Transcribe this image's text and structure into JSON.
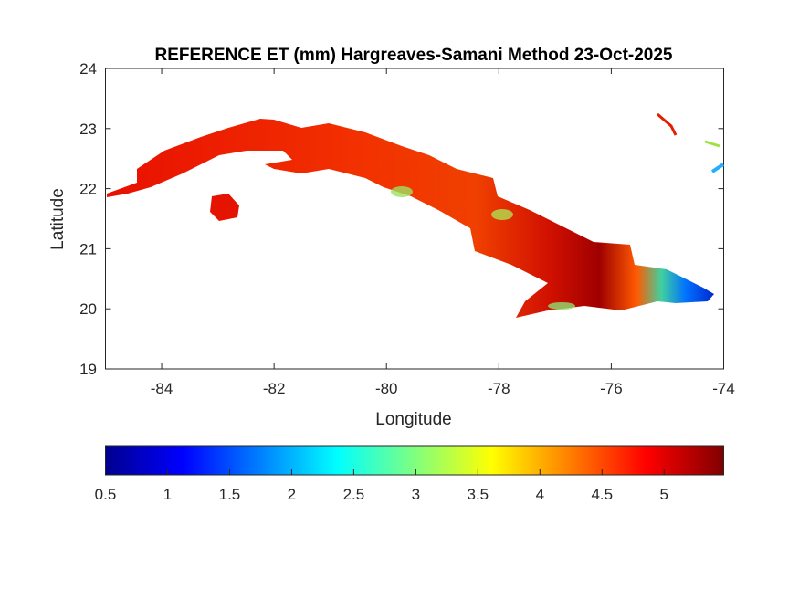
{
  "chart_data": {
    "type": "heatmap",
    "title": "REFERENCE ET (mm) Hargreaves-Samani Method  23-Oct-2025",
    "xlabel": "Longitude",
    "ylabel": "Latitude",
    "xlim": [
      -85,
      -74
    ],
    "ylim": [
      19,
      24
    ],
    "xticks": [
      -84,
      -82,
      -80,
      -78,
      -76,
      -74
    ],
    "yticks": [
      19,
      20,
      21,
      22,
      23,
      24
    ],
    "grid": false,
    "colorbar": {
      "location": "bottom",
      "colormap": "jet",
      "clim": [
        0.5,
        5.48
      ],
      "ticks": [
        0.5,
        1,
        1.5,
        2,
        2.5,
        3,
        3.5,
        4,
        4.5,
        5
      ]
    },
    "region": "Cuba",
    "value_summary": "Mostly 4.5-5.2 mm over island; darkest (~5.3) in east-central; 3.5-4 patches central; 1-2 at far eastern tip"
  }
}
